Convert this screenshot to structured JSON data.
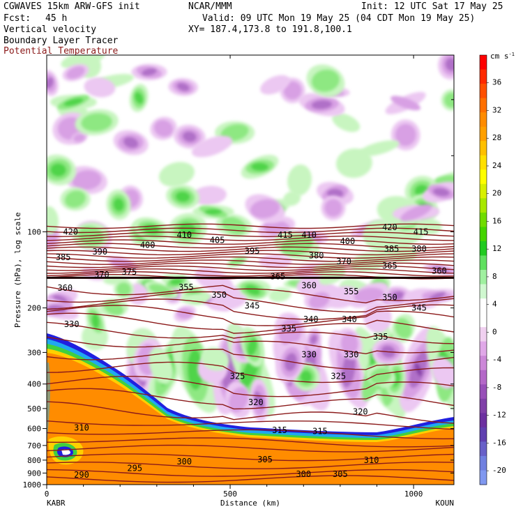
{
  "header": {
    "model": "CGWAVES 15km ARW-GFS init",
    "org": "NCAR/MMM",
    "init": "Init: 12 UTC Sat 17 May 25",
    "fcst_label": "Fcst:",
    "fcst_value": "45 h",
    "valid": "Valid: 09 UTC Mon 19 May 25 (04 CDT Mon 19 May 25)",
    "xy": "XY= 187.4,173.8 to 191.8,100.1",
    "field1": "Vertical velocity",
    "field2": "Boundary Layer Tracer",
    "field3": "Potential Temperature",
    "field3_color": "#8b1a1a"
  },
  "chart_data": {
    "type": "heatmap",
    "title": "Vertical velocity",
    "xlabel": "Distance (km)",
    "ylabel": "Pressure (hPa), log scale",
    "x_ticks": [
      0,
      500,
      1000
    ],
    "x_range": [
      0,
      1110
    ],
    "y_ticks": [
      100,
      200,
      300,
      400,
      500,
      600,
      700,
      800,
      900,
      1000
    ],
    "y_range": [
      1000,
      20
    ],
    "y_scale": "log",
    "endpoints": {
      "left": "KABR",
      "right": "KOUN"
    },
    "colorbar": {
      "unit": "cm s",
      "unit_exp": "-1",
      "labels": [
        "36",
        "32",
        "28",
        "24",
        "20",
        "16",
        "12",
        "8",
        "4",
        "0",
        "-4",
        "-8",
        "-12",
        "-16",
        "-20"
      ],
      "colors": [
        "#ff0000",
        "#ff2a00",
        "#ff5000",
        "#ff7000",
        "#ff8c00",
        "#ffa000",
        "#ffc000",
        "#ffe000",
        "#ffff00",
        "#d8f000",
        "#a8e800",
        "#70dc00",
        "#44d400",
        "#20ca20",
        "#60e060",
        "#a0f0a0",
        "#d0f8d0",
        "#ffffff",
        "#ffffff",
        "#f0d0f0",
        "#e0a8e8",
        "#cc88d8",
        "#b468c8",
        "#9850b8",
        "#8040a8",
        "#6c30a0",
        "#6040b0",
        "#6860c8",
        "#7080e0",
        "#8098f0"
      ]
    },
    "contours": {
      "color": "#8b1a1a",
      "labels": [
        {
          "text": "420",
          "d": 65,
          "p": 100
        },
        {
          "text": "410",
          "d": 375,
          "p": 103
        },
        {
          "text": "405",
          "d": 465,
          "p": 108
        },
        {
          "text": "415",
          "d": 650,
          "p": 103
        },
        {
          "text": "410",
          "d": 715,
          "p": 103
        },
        {
          "text": "420",
          "d": 935,
          "p": 96
        },
        {
          "text": "415",
          "d": 1020,
          "p": 100
        },
        {
          "text": "400",
          "d": 275,
          "p": 113
        },
        {
          "text": "400",
          "d": 820,
          "p": 109
        },
        {
          "text": "385",
          "d": 45,
          "p": 126
        },
        {
          "text": "390",
          "d": 145,
          "p": 120
        },
        {
          "text": "395",
          "d": 560,
          "p": 119
        },
        {
          "text": "385",
          "d": 940,
          "p": 117
        },
        {
          "text": "380",
          "d": 1015,
          "p": 117
        },
        {
          "text": "380",
          "d": 735,
          "p": 124
        },
        {
          "text": "370",
          "d": 810,
          "p": 131
        },
        {
          "text": "365",
          "d": 935,
          "p": 136
        },
        {
          "text": "370",
          "d": 150,
          "p": 148
        },
        {
          "text": "375",
          "d": 225,
          "p": 144
        },
        {
          "text": "360",
          "d": 50,
          "p": 167
        },
        {
          "text": "355",
          "d": 380,
          "p": 166
        },
        {
          "text": "365",
          "d": 630,
          "p": 150
        },
        {
          "text": "360",
          "d": 1070,
          "p": 143
        },
        {
          "text": "350",
          "d": 470,
          "p": 178
        },
        {
          "text": "360",
          "d": 715,
          "p": 163
        },
        {
          "text": "355",
          "d": 830,
          "p": 172
        },
        {
          "text": "350",
          "d": 935,
          "p": 182
        },
        {
          "text": "345",
          "d": 560,
          "p": 196
        },
        {
          "text": "345",
          "d": 1015,
          "p": 200
        },
        {
          "text": "340",
          "d": 720,
          "p": 222
        },
        {
          "text": "340",
          "d": 825,
          "p": 222
        },
        {
          "text": "330",
          "d": 68,
          "p": 232
        },
        {
          "text": "335",
          "d": 660,
          "p": 242
        },
        {
          "text": "335",
          "d": 910,
          "p": 260
        },
        {
          "text": "330",
          "d": 715,
          "p": 306
        },
        {
          "text": "330",
          "d": 830,
          "p": 306
        },
        {
          "text": "325",
          "d": 520,
          "p": 372
        },
        {
          "text": "325",
          "d": 795,
          "p": 372
        },
        {
          "text": "320",
          "d": 570,
          "p": 472
        },
        {
          "text": "320",
          "d": 855,
          "p": 515
        },
        {
          "text": "315",
          "d": 635,
          "p": 610
        },
        {
          "text": "315",
          "d": 745,
          "p": 615
        },
        {
          "text": "310",
          "d": 95,
          "p": 596
        },
        {
          "text": "310",
          "d": 885,
          "p": 800
        },
        {
          "text": "305",
          "d": 595,
          "p": 795
        },
        {
          "text": "300",
          "d": 375,
          "p": 810
        },
        {
          "text": "300",
          "d": 700,
          "p": 910
        },
        {
          "text": "305",
          "d": 800,
          "p": 910
        },
        {
          "text": "295",
          "d": 240,
          "p": 860
        },
        {
          "text": "290",
          "d": 95,
          "p": 915
        }
      ]
    }
  }
}
